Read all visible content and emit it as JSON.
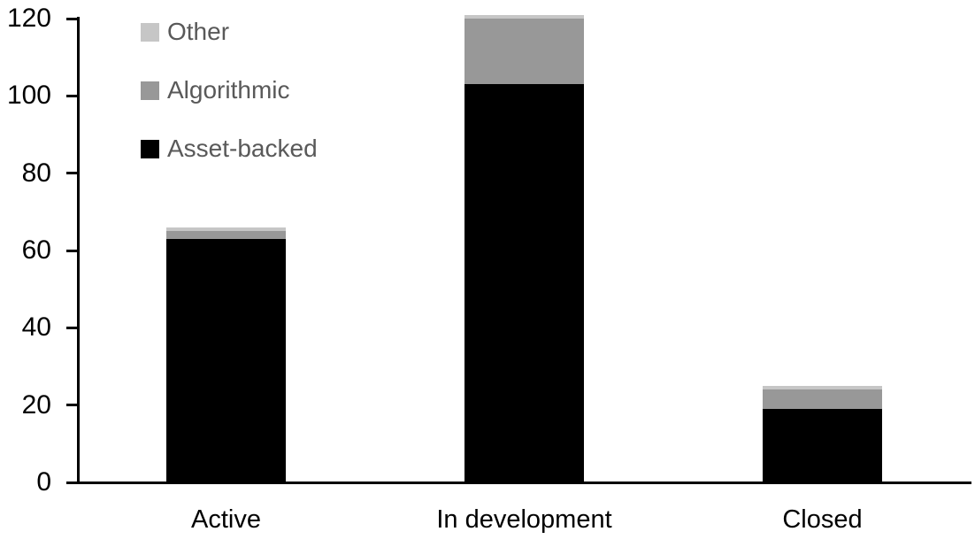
{
  "chart_data": {
    "type": "bar",
    "stacked": true,
    "title": "",
    "xlabel": "",
    "ylabel": "",
    "categories": [
      "Active",
      "In development",
      "Closed"
    ],
    "series": [
      {
        "name": "Asset-backed",
        "color": "#000000",
        "values": [
          63,
          103,
          19
        ]
      },
      {
        "name": "Algorithmic",
        "color": "#989898",
        "values": [
          2,
          17,
          5
        ]
      },
      {
        "name": "Other",
        "color": "#c6c6c6",
        "values": [
          1,
          1,
          1
        ]
      }
    ],
    "totals": [
      66,
      121,
      25
    ],
    "ylim": [
      0,
      120
    ],
    "yticks": [
      0,
      20,
      40,
      60,
      80,
      100,
      120
    ],
    "grid": false,
    "legend_order": [
      "Other",
      "Algorithmic",
      "Asset-backed"
    ],
    "legend_position": "upper-left-inside",
    "colors": {
      "axis": "#000000",
      "tick_label_text": "#000000",
      "category_label_text": "#000000",
      "legend_text": "#595959",
      "background": "#ffffff"
    }
  }
}
